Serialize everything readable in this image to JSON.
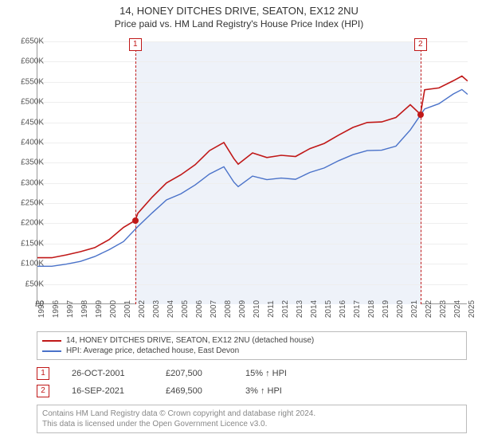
{
  "title": "14, HONEY DITCHES DRIVE, SEATON, EX12 2NU",
  "subtitle": "Price paid vs. HM Land Registry's House Price Index (HPI)",
  "chart": {
    "type": "line",
    "background_color": "#ffffff",
    "grid_color": "#eeeeee",
    "axis_color": "#999999",
    "shade_color": "#eef2f9",
    "y": {
      "min": 0,
      "max": 650000,
      "step": 50000,
      "prefix": "£",
      "suffix_thousands": "K",
      "ticks": [
        "£0",
        "£50K",
        "£100K",
        "£150K",
        "£200K",
        "£250K",
        "£300K",
        "£350K",
        "£400K",
        "£450K",
        "£500K",
        "£550K",
        "£600K",
        "£650K"
      ]
    },
    "x": {
      "min": 1995,
      "max": 2025,
      "step": 1,
      "ticks": [
        "1995",
        "1996",
        "1997",
        "1998",
        "1999",
        "2000",
        "2001",
        "2002",
        "2003",
        "2004",
        "2005",
        "2006",
        "2007",
        "2008",
        "2009",
        "2010",
        "2011",
        "2012",
        "2013",
        "2014",
        "2015",
        "2016",
        "2017",
        "2018",
        "2019",
        "2020",
        "2021",
        "2022",
        "2023",
        "2024",
        "2025"
      ]
    },
    "shade_x": [
      2001.82,
      2021.71
    ],
    "series": [
      {
        "name": "property",
        "label": "14, HONEY DITCHES DRIVE, SEATON, EX12 2NU (detached house)",
        "color": "#c01818",
        "width": 1.6,
        "points": [
          [
            1995,
            115000
          ],
          [
            1996,
            115000
          ],
          [
            1997,
            122000
          ],
          [
            1998,
            130000
          ],
          [
            1999,
            140000
          ],
          [
            2000,
            160000
          ],
          [
            2001,
            190000
          ],
          [
            2001.82,
            207500
          ],
          [
            2002,
            225000
          ],
          [
            2003,
            265000
          ],
          [
            2004,
            300000
          ],
          [
            2005,
            320000
          ],
          [
            2006,
            345000
          ],
          [
            2007,
            380000
          ],
          [
            2008,
            400000
          ],
          [
            2008.7,
            360000
          ],
          [
            2009,
            346536
          ],
          [
            2010,
            374325
          ],
          [
            2011,
            362902
          ],
          [
            2012,
            368320
          ],
          [
            2013,
            365394
          ],
          [
            2014,
            384787
          ],
          [
            2015,
            397585
          ],
          [
            2016,
            418246
          ],
          [
            2017,
            437255
          ],
          [
            2018,
            449401
          ],
          [
            2019,
            450816
          ],
          [
            2020,
            461973
          ],
          [
            2021,
            493500
          ],
          [
            2021.71,
            469500
          ],
          [
            2022,
            530376
          ],
          [
            2023,
            534915
          ],
          [
            2024,
            552647
          ],
          [
            2024.6,
            564382
          ],
          [
            2025,
            551870
          ]
        ]
      },
      {
        "name": "hpi",
        "label": "HPI: Average price, detached house, East Devon",
        "color": "#4a72c9",
        "width": 1.4,
        "points": [
          [
            1995,
            94000
          ],
          [
            1996,
            94000
          ],
          [
            1997,
            99000
          ],
          [
            1998,
            106000
          ],
          [
            1999,
            118000
          ],
          [
            2000,
            135000
          ],
          [
            2001,
            155000
          ],
          [
            2002,
            192000
          ],
          [
            2003,
            226000
          ],
          [
            2004,
            258000
          ],
          [
            2005,
            273000
          ],
          [
            2006,
            295000
          ],
          [
            2007,
            322000
          ],
          [
            2008,
            340000
          ],
          [
            2008.7,
            302000
          ],
          [
            2009,
            291000
          ],
          [
            2010,
            317000
          ],
          [
            2011,
            308000
          ],
          [
            2012,
            312000
          ],
          [
            2013,
            309000
          ],
          [
            2014,
            326000
          ],
          [
            2015,
            337000
          ],
          [
            2016,
            355000
          ],
          [
            2017,
            370000
          ],
          [
            2018,
            380000
          ],
          [
            2019,
            381000
          ],
          [
            2020,
            391000
          ],
          [
            2021,
            431000
          ],
          [
            2022,
            483000
          ],
          [
            2023,
            496000
          ],
          [
            2024,
            520000
          ],
          [
            2024.6,
            531000
          ],
          [
            2025,
            519000
          ]
        ]
      }
    ],
    "sale_markers": [
      {
        "idx": "1",
        "x": 2001.82,
        "y": 207500,
        "dot_color": "#c01818"
      },
      {
        "idx": "2",
        "x": 2021.71,
        "y": 469500,
        "dot_color": "#c01818"
      }
    ]
  },
  "legend": {
    "rows": [
      {
        "color": "#c01818",
        "label": "14, HONEY DITCHES DRIVE, SEATON, EX12 2NU (detached house)"
      },
      {
        "color": "#4a72c9",
        "label": "HPI: Average price, detached house, East Devon"
      }
    ]
  },
  "sales": [
    {
      "idx": "1",
      "date": "26-OCT-2001",
      "price": "£207,500",
      "delta": "15% ↑ HPI"
    },
    {
      "idx": "2",
      "date": "16-SEP-2021",
      "price": "£469,500",
      "delta": "3% ↑ HPI"
    }
  ],
  "footer": {
    "line1": "Contains HM Land Registry data © Crown copyright and database right 2024.",
    "line2": "This data is licensed under the Open Government Licence v3.0."
  }
}
